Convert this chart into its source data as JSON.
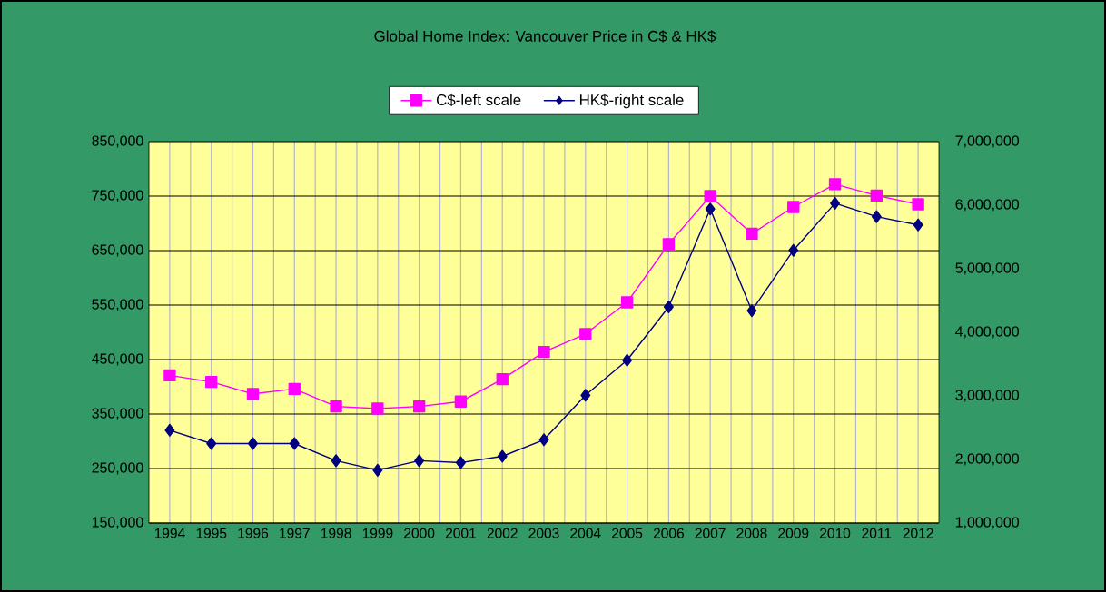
{
  "chart_data": {
    "type": "line",
    "title": "Global Home Index: Vancouver Price in C$ & HK$",
    "categories": [
      "1994",
      "1995",
      "1996",
      "1997",
      "1998",
      "1999",
      "2000",
      "2001",
      "2002",
      "2003",
      "2004",
      "2005",
      "2006",
      "2007",
      "2008",
      "2009",
      "2010",
      "2011",
      "2012"
    ],
    "series": [
      {
        "name": "C$-left scale",
        "color": "#ff00ff",
        "marker": "square",
        "values": [
          421000,
          409000,
          387000,
          396000,
          364000,
          360000,
          364000,
          373000,
          414000,
          464000,
          497000,
          555000,
          662000,
          750000,
          681000,
          730000,
          772000,
          751000,
          735000
        ]
      },
      {
        "name": "HK$-right scale",
        "color": "#000080",
        "marker": "diamond",
        "axis": "y2",
        "values": [
          2460000,
          2250000,
          2250000,
          2250000,
          1980000,
          1830000,
          1980000,
          1950000,
          2050000,
          2310000,
          3010000,
          3560000,
          4400000,
          5940000,
          4340000,
          5290000,
          6030000,
          5820000,
          5690000
        ]
      }
    ],
    "ylim": [
      150000,
      850000
    ],
    "yticks": [
      {
        "value": 150000,
        "label": "150,000"
      },
      {
        "value": 250000,
        "label": "250,000"
      },
      {
        "value": 350000,
        "label": "350,000"
      },
      {
        "value": 450000,
        "label": "450,000"
      },
      {
        "value": 550000,
        "label": "550,000"
      },
      {
        "value": 650000,
        "label": "650,000"
      },
      {
        "value": 750000,
        "label": "750,000"
      },
      {
        "value": 850000,
        "label": "850,000"
      }
    ],
    "y2lim": [
      1000000,
      7000000
    ],
    "y2ticks": [
      {
        "value": 1000000,
        "label": "1,000,000"
      },
      {
        "value": 2000000,
        "label": "2,000,000"
      },
      {
        "value": 3000000,
        "label": "3,000,000"
      },
      {
        "value": 4000000,
        "label": "4,000,000"
      },
      {
        "value": 5000000,
        "label": "5,000,000"
      },
      {
        "value": 6000000,
        "label": "6,000,000"
      },
      {
        "value": 7000000,
        "label": "7,000,000"
      }
    ],
    "grid": true,
    "legend": "top",
    "line_style": "solid"
  }
}
